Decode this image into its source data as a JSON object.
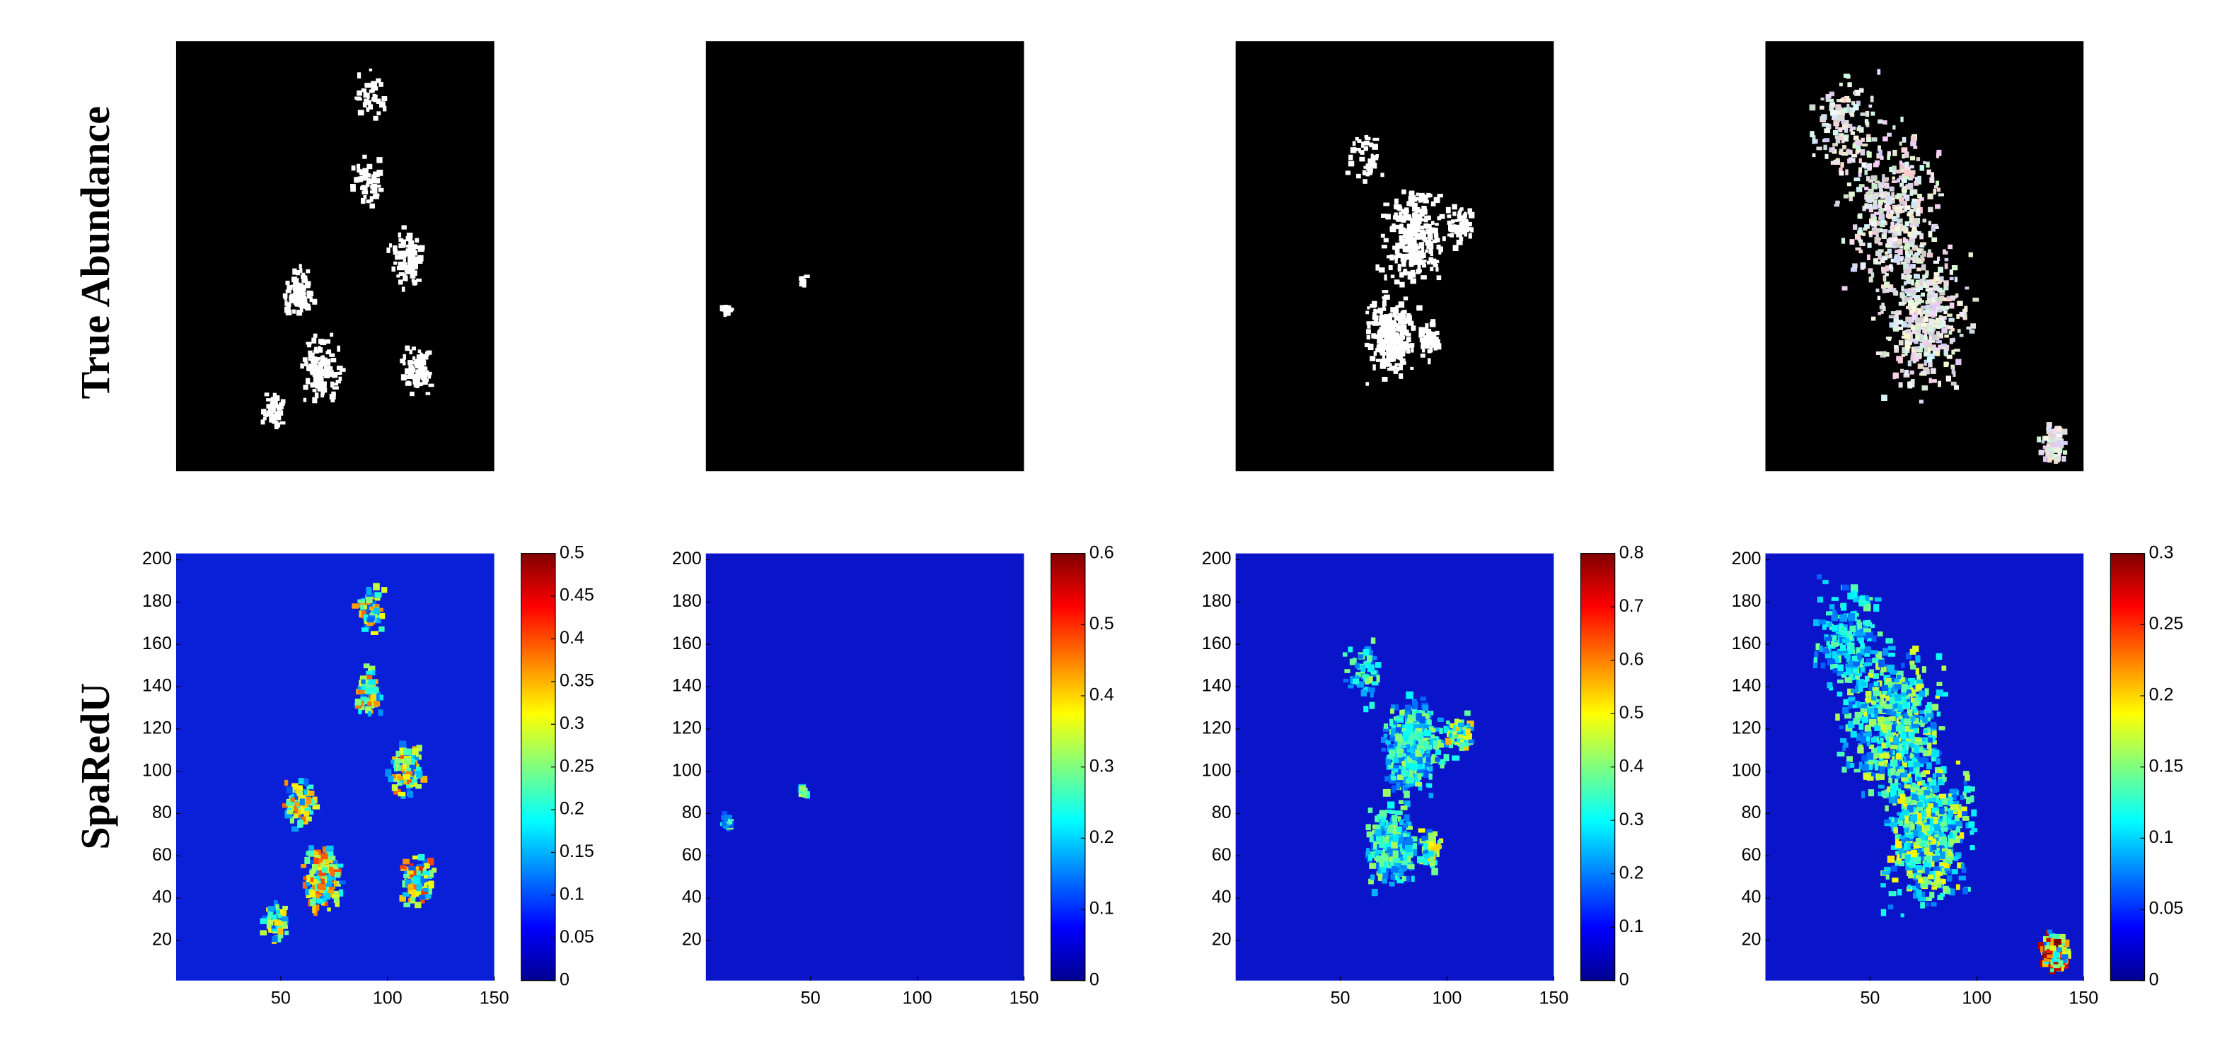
{
  "row_labels": [
    "True Abundance",
    "SpaRedU"
  ],
  "chart_data": [
    {
      "type": "heatmap",
      "xlim": [
        1,
        150
      ],
      "ylim": [
        1,
        203
      ],
      "xticks": [
        50,
        100,
        150
      ],
      "yticks": [
        20,
        40,
        60,
        80,
        100,
        120,
        140,
        160,
        180,
        200
      ],
      "colorbar": {
        "lim": [
          0,
          0.5
        ],
        "ticks": [
          0,
          0.05,
          0.1,
          0.15,
          0.2,
          0.25,
          0.3,
          0.35,
          0.4,
          0.45,
          0.5
        ]
      }
    },
    {
      "type": "heatmap",
      "xlim": [
        1,
        150
      ],
      "ylim": [
        1,
        203
      ],
      "xticks": [
        50,
        100,
        150
      ],
      "yticks": [
        20,
        40,
        60,
        80,
        100,
        120,
        140,
        160,
        180,
        200
      ],
      "colorbar": {
        "lim": [
          0,
          0.6
        ],
        "ticks": [
          0,
          0.1,
          0.2,
          0.3,
          0.4,
          0.5,
          0.6
        ]
      }
    },
    {
      "type": "heatmap",
      "xlim": [
        1,
        150
      ],
      "ylim": [
        1,
        203
      ],
      "xticks": [
        50,
        100,
        150
      ],
      "yticks": [
        20,
        40,
        60,
        80,
        100,
        120,
        140,
        160,
        180,
        200
      ],
      "colorbar": {
        "lim": [
          0,
          0.8
        ],
        "ticks": [
          0,
          0.1,
          0.2,
          0.3,
          0.4,
          0.5,
          0.6,
          0.7,
          0.8
        ]
      }
    },
    {
      "type": "heatmap",
      "xlim": [
        1,
        150
      ],
      "ylim": [
        1,
        203
      ],
      "xticks": [
        50,
        100,
        150
      ],
      "yticks": [
        20,
        40,
        60,
        80,
        100,
        120,
        140,
        160,
        180,
        200
      ],
      "colorbar": {
        "lim": [
          0,
          0.3
        ],
        "ticks": [
          0,
          0.05,
          0.1,
          0.15,
          0.2,
          0.25,
          0.3
        ]
      }
    }
  ]
}
